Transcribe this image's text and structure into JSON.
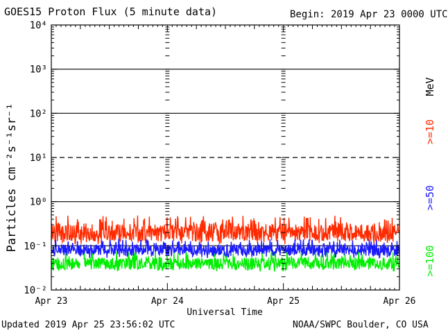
{
  "header": {
    "title": "GOES15 Proton Flux (5 minute data)",
    "begin": "Begin: 2019 Apr 23 0000 UTC"
  },
  "footer": {
    "updated": "Updated 2019 Apr 25 23:56:02 UTC",
    "credit": "NOAA/SWPC Boulder, CO USA"
  },
  "colors": {
    "ge10": "#ff2a00",
    "ge50": "#1a1aff",
    "ge100": "#00ee00",
    "axes": "#000000"
  },
  "chart_data": {
    "type": "line",
    "title": "GOES15 Proton Flux (5 minute data)",
    "xlabel": "Universal Time",
    "ylabel": "Particles cm⁻²s⁻¹sr⁻¹",
    "y_scale": "log",
    "ylim": [
      0.01,
      10000
    ],
    "y_ticks": [
      "10⁻²",
      "10⁻¹",
      "10⁰",
      "10¹",
      "10²",
      "10³",
      "10⁴"
    ],
    "x_ticks": [
      "Apr 23",
      "Apr 24",
      "Apr 25",
      "Apr 26"
    ],
    "xlim": [
      "2019-04-23",
      "2019-04-26"
    ],
    "grid": "horizontal lines at each decade, 10¹ dashed",
    "unit_label": "MeV",
    "series": [
      {
        "name": ">=10",
        "typical": 0.2,
        "range": [
          0.1,
          0.55
        ]
      },
      {
        "name": ">=50",
        "typical": 0.08,
        "range": [
          0.05,
          0.15
        ]
      },
      {
        "name": ">=100",
        "typical": 0.04,
        "range": [
          0.025,
          0.08
        ]
      }
    ]
  }
}
